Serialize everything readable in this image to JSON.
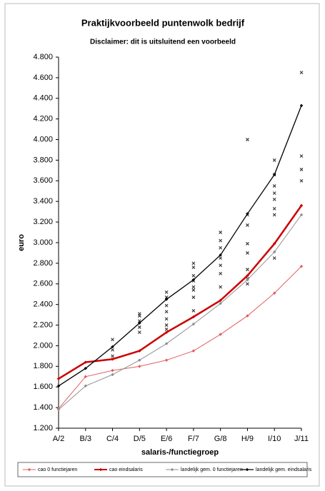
{
  "chart_data": {
    "type": "line",
    "title": "Praktijkvoorbeeld puntenwolk bedrijf",
    "subtitle": "Disclaimer: dit is uitsluitend een voorbeeld",
    "y_label": "euro",
    "x_label": "salaris-/functiegroep",
    "categories": [
      "A/2",
      "B/3",
      "C/4",
      "D/5",
      "E/6",
      "F/7",
      "G/8",
      "H/9",
      "I/10",
      "J/11"
    ],
    "series": [
      {
        "name": "cao 0 functiejaren",
        "color": "#e06060",
        "width": 1,
        "values": [
          1390,
          1700,
          1760,
          1800,
          1860,
          1950,
          2110,
          2290,
          2510,
          2770
        ]
      },
      {
        "name": "cao eindsalaris",
        "color": "#cc0000",
        "width": 2.5,
        "values": [
          1680,
          1840,
          1870,
          1950,
          2130,
          2280,
          2440,
          2680,
          2990,
          3360
        ]
      },
      {
        "name": "landelijk gem. 0 functiejaren",
        "color": "#909090",
        "width": 1,
        "values": [
          1380,
          1610,
          1720,
          1860,
          2020,
          2210,
          2410,
          2640,
          2910,
          3270
        ]
      },
      {
        "name": "landelijk gem. eindsalaris",
        "color": "#000000",
        "width": 1.3,
        "values": [
          1610,
          1780,
          1990,
          2220,
          2450,
          2640,
          2880,
          3280,
          3660,
          4330
        ]
      }
    ],
    "scatter": {
      "color": "#333333",
      "x": [
        2,
        2,
        2,
        3,
        3,
        3,
        3,
        3,
        4,
        4,
        4,
        4,
        4,
        4,
        4,
        5,
        5,
        5,
        5,
        5,
        5,
        5,
        5,
        6,
        6,
        6,
        6,
        6,
        6,
        6,
        7,
        7,
        7,
        7,
        7,
        7,
        7,
        7,
        8,
        8,
        8,
        8,
        8,
        8,
        8,
        8,
        9,
        9,
        9,
        9
      ],
      "values": [
        2060,
        1960,
        1900,
        2310,
        2290,
        2240,
        2180,
        2130,
        2520,
        2470,
        2390,
        2330,
        2260,
        2200,
        2160,
        2800,
        2760,
        2680,
        2630,
        2570,
        2540,
        2470,
        2340,
        3100,
        3020,
        2950,
        2850,
        2780,
        2700,
        2570,
        4000,
        3270,
        3170,
        2990,
        2900,
        2740,
        2650,
        2600,
        3800,
        3660,
        3550,
        3480,
        3420,
        3330,
        3270,
        2850,
        4650,
        3840,
        3710,
        3600
      ]
    },
    "ylim": [
      1200,
      4800
    ],
    "yticks": [
      {
        "value": 1200,
        "label": "1.200"
      },
      {
        "value": 1400,
        "label": "1.400"
      },
      {
        "value": 1600,
        "label": "1.600"
      },
      {
        "value": 1800,
        "label": "1.800"
      },
      {
        "value": 2000,
        "label": "2.000"
      },
      {
        "value": 2200,
        "label": "2.200"
      },
      {
        "value": 2400,
        "label": "2.400"
      },
      {
        "value": 2600,
        "label": "2.600"
      },
      {
        "value": 2800,
        "label": "2.800"
      },
      {
        "value": 3000,
        "label": "3.000"
      },
      {
        "value": 3200,
        "label": "3.200"
      },
      {
        "value": 3400,
        "label": "3.400"
      },
      {
        "value": 3600,
        "label": "3.600"
      },
      {
        "value": 3800,
        "label": "3.800"
      },
      {
        "value": 4000,
        "label": "4.000"
      },
      {
        "value": 4200,
        "label": "4.200"
      },
      {
        "value": 4400,
        "label": "4.400"
      },
      {
        "value": 4600,
        "label": "4.600"
      },
      {
        "value": 4800,
        "label": "4.800"
      }
    ],
    "grid": false,
    "legend": "bottom"
  }
}
